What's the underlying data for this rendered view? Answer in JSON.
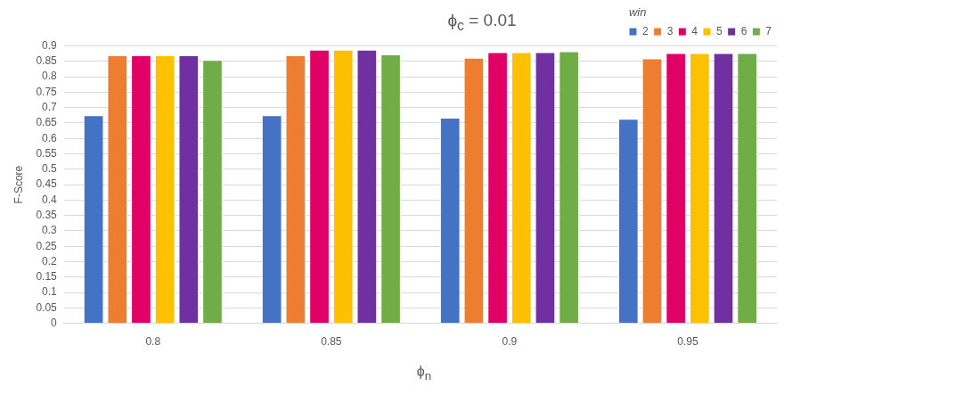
{
  "chart_data": {
    "type": "bar",
    "title": "ϕ$_{c}$ = 0.01",
    "xlabel": "ϕ$_{n}$",
    "ylabel": "F-Score",
    "legend_title": "win",
    "categories": [
      "0.8",
      "0.85",
      "0.9",
      "0.95"
    ],
    "series": [
      {
        "name": "2",
        "color": "#4472c4",
        "values": [
          0.675,
          0.675,
          0.667,
          0.664
        ]
      },
      {
        "name": "3",
        "color": "#ed7d31",
        "values": [
          0.87,
          0.87,
          0.862,
          0.86
        ]
      },
      {
        "name": "4",
        "color": "#e00066",
        "values": [
          0.87,
          0.888,
          0.88,
          0.877
        ]
      },
      {
        "name": "5",
        "color": "#ffc000",
        "values": [
          0.87,
          0.888,
          0.88,
          0.877
        ]
      },
      {
        "name": "6",
        "color": "#7030a0",
        "values": [
          0.87,
          0.888,
          0.88,
          0.877
        ]
      },
      {
        "name": "7",
        "color": "#70ad47",
        "values": [
          0.855,
          0.873,
          0.883,
          0.877
        ]
      }
    ],
    "ylim": [
      0,
      0.9
    ],
    "yticks": [
      0,
      0.05,
      0.1,
      0.15,
      0.2,
      0.25,
      0.3,
      0.35,
      0.4,
      0.45,
      0.5,
      0.55,
      0.6,
      0.65,
      0.7,
      0.75,
      0.8,
      0.85,
      0.9
    ],
    "grid": "y",
    "legend": "top right"
  }
}
